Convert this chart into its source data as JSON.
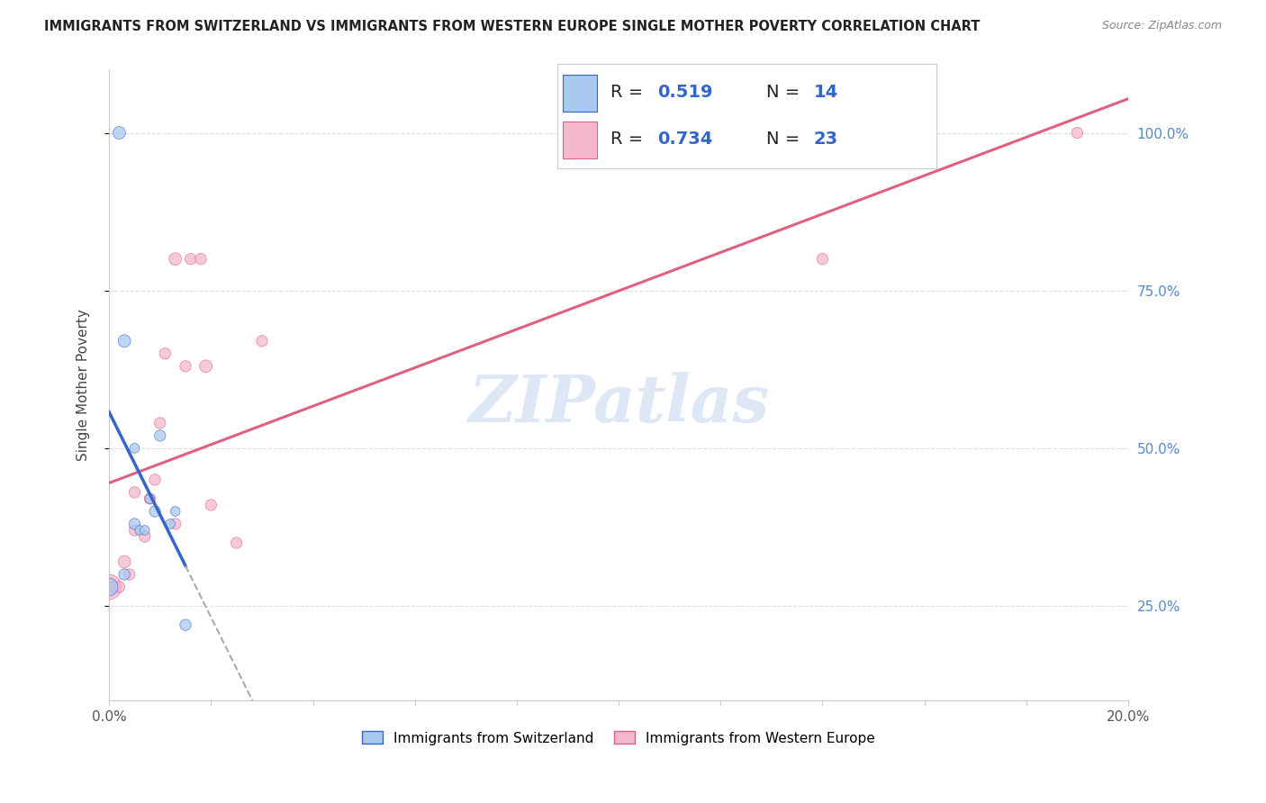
{
  "title": "IMMIGRANTS FROM SWITZERLAND VS IMMIGRANTS FROM WESTERN EUROPE SINGLE MOTHER POVERTY CORRELATION CHART",
  "source": "Source: ZipAtlas.com",
  "ylabel": "Single Mother Poverty",
  "R1": "0.519",
  "N1": "14",
  "R2": "0.734",
  "N2": "23",
  "color1_fill": "#a8c8f0",
  "color1_edge": "#3366cc",
  "color2_fill": "#f4b8cc",
  "color2_edge": "#e06080",
  "line_color1": "#3366cc",
  "line_color2": "#e06080",
  "line_color_dashed": "#aaaaaa",
  "xlim": [
    0.0,
    0.2
  ],
  "ylim": [
    0.1,
    1.1
  ],
  "switzerland_x": [
    0.0,
    0.003,
    0.003,
    0.005,
    0.005,
    0.006,
    0.007,
    0.008,
    0.009,
    0.01,
    0.012,
    0.013,
    0.015,
    0.002
  ],
  "switzerland_y": [
    0.28,
    0.67,
    0.3,
    0.5,
    0.38,
    0.37,
    0.37,
    0.42,
    0.4,
    0.52,
    0.38,
    0.4,
    0.22,
    1.0
  ],
  "switzerland_size": [
    200,
    100,
    80,
    60,
    80,
    60,
    60,
    60,
    80,
    80,
    60,
    60,
    80,
    100
  ],
  "western_europe_x": [
    0.0,
    0.001,
    0.002,
    0.003,
    0.004,
    0.005,
    0.005,
    0.007,
    0.008,
    0.009,
    0.01,
    0.011,
    0.013,
    0.013,
    0.015,
    0.016,
    0.018,
    0.019,
    0.02,
    0.025,
    0.03,
    0.14,
    0.19
  ],
  "western_europe_y": [
    0.28,
    0.28,
    0.28,
    0.32,
    0.3,
    0.37,
    0.43,
    0.36,
    0.42,
    0.45,
    0.54,
    0.65,
    0.38,
    0.8,
    0.63,
    0.8,
    0.8,
    0.63,
    0.41,
    0.35,
    0.67,
    0.8,
    1.0
  ],
  "western_europe_size": [
    400,
    80,
    80,
    100,
    80,
    80,
    80,
    80,
    80,
    80,
    80,
    80,
    80,
    100,
    80,
    80,
    80,
    100,
    80,
    80,
    80,
    80,
    80
  ],
  "watermark": "ZIPatlas",
  "watermark_color": "#c8d8f0",
  "background_color": "#ffffff",
  "grid_color": "#dddddd",
  "ytick_positions": [
    0.25,
    0.5,
    0.75,
    1.0
  ],
  "ytick_labels_right": [
    "25.0%",
    "50.0%",
    "75.0%",
    "100.0%"
  ],
  "xtick_positions": [
    0.0,
    0.02,
    0.04,
    0.06,
    0.08,
    0.1,
    0.12,
    0.14,
    0.16,
    0.18,
    0.2
  ],
  "xtick_labels": [
    "0.0%",
    "",
    "",
    "",
    "",
    "",
    "",
    "",
    "",
    "",
    "20.0%"
  ],
  "legend_label1": "Immigrants from Switzerland",
  "legend_label2": "Immigrants from Western Europe",
  "title_fontsize": 10.5,
  "source_fontsize": 9,
  "label_fontsize": 11,
  "tick_fontsize": 11,
  "legend_fontsize": 11,
  "R_N_fontsize": 14,
  "watermark_fontsize": 52
}
